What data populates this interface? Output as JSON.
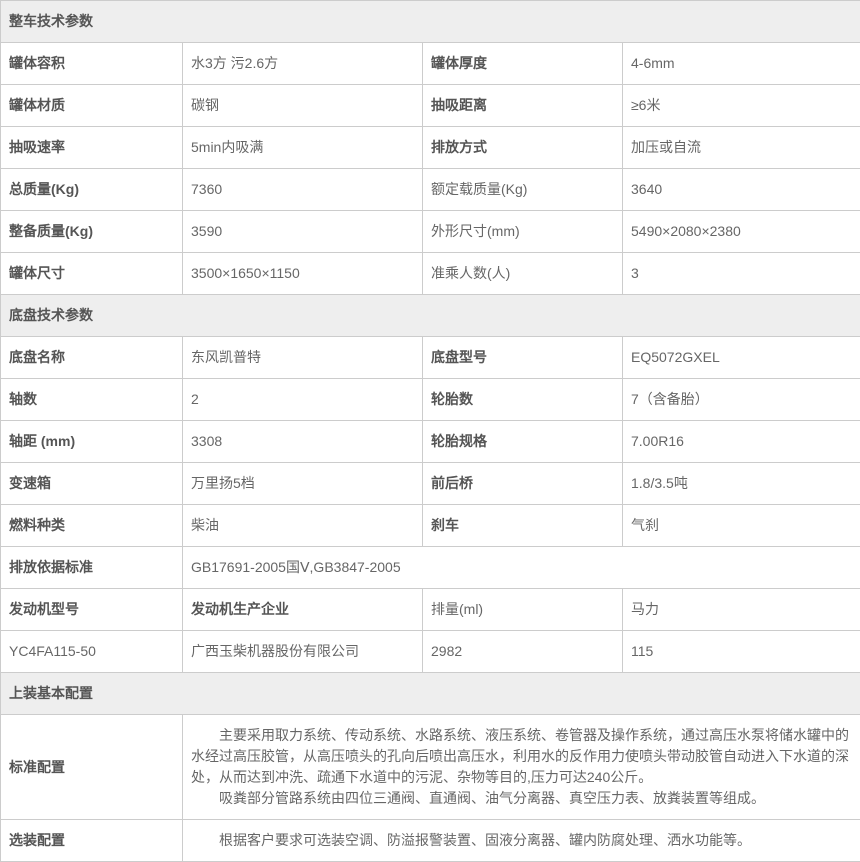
{
  "sections": {
    "vehicle": {
      "header": "整车技术参数",
      "rows": [
        {
          "l1": "罐体容积",
          "v1": "水3方 污2.6方",
          "l2": "罐体厚度",
          "v2": "4-6mm"
        },
        {
          "l1": "罐体材质",
          "v1": "碳钢",
          "l2": "抽吸距离",
          "v2": "≥6米"
        },
        {
          "l1": "抽吸速率",
          "v1": "5min内吸满",
          "l2": "排放方式",
          "v2": "加压或自流"
        },
        {
          "l1": "总质量(Kg)",
          "v1": "7360",
          "l2": "额定载质量(Kg)",
          "v2": "3640"
        },
        {
          "l1": "整备质量(Kg)",
          "v1": "3590",
          "l2": "外形尺寸(mm)",
          "v2": "5490×2080×2380"
        },
        {
          "l1": "罐体尺寸",
          "v1": "3500×1650×1150",
          "l2": "准乘人数(人)",
          "v2": "3"
        }
      ]
    },
    "chassis": {
      "header": "底盘技术参数",
      "rows": [
        {
          "l1": "底盘名称",
          "v1": "东风凯普特",
          "l2": "底盘型号",
          "v2": "EQ5072GXEL"
        },
        {
          "l1": "轴数",
          "v1": "2",
          "l2": "轮胎数",
          "v2": "7（含备胎）"
        },
        {
          "l1": "轴距 (mm)",
          "v1": "3308",
          "l2": "轮胎规格",
          "v2": "7.00R16"
        },
        {
          "l1": "变速箱",
          "v1": "万里扬5档",
          "l2": "前后桥",
          "v2": "1.8/3.5吨"
        },
        {
          "l1": "燃料种类",
          "v1": "柴油",
          "l2": "刹车",
          "v2": "气刹"
        }
      ],
      "emission": {
        "label": "排放依据标准",
        "value": "GB17691-2005国Ⅴ,GB3847-2005"
      },
      "engine_header": {
        "c1": "发动机型号",
        "c2": "发动机生产企业",
        "c3": "排量(ml)",
        "c4": "马力"
      },
      "engine_row": {
        "c1": "YC4FA115-50",
        "c2": "广西玉柴机器股份有限公司",
        "c3": "2982",
        "c4": "115"
      }
    },
    "equip": {
      "header": "上装基本配置",
      "standard": {
        "label": "标准配置",
        "text": "　　主要采用取力系统、传动系统、水路系统、液压系统、卷管器及操作系统，通过高压水泵将储水罐中的水经过高压胶管，从高压喷头的孔向后喷出高压水，利用水的反作用力使喷头带动胶管自动进入下水道的深处，从而达到冲洗、疏通下水道中的污泥、杂物等目的,压力可达240公斤。\n　　吸粪部分管路系统由四位三通阀、直通阀、油气分离器、真空压力表、放粪装置等组成。"
      },
      "optional": {
        "label": "选装配置",
        "text": "　　根据客户要求可选装空调、防溢报警装置、固液分离器、罐内防腐处理、洒水功能等。"
      }
    }
  }
}
